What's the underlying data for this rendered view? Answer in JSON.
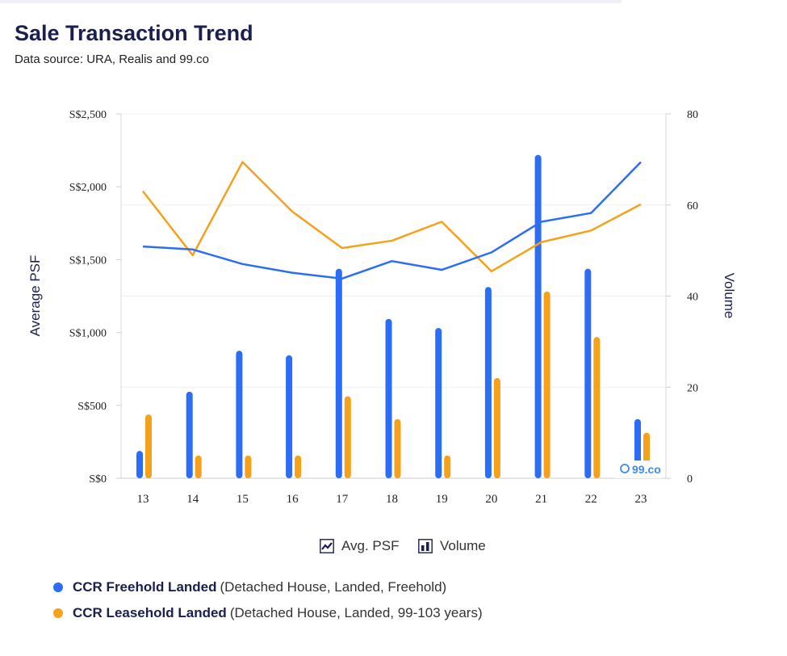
{
  "header": {
    "title": "Sale Transaction Trend",
    "subtitle": "Data source: URA, Realis and 99.co"
  },
  "toggles": {
    "psf_label": "Avg. PSF",
    "volume_label": "Volume"
  },
  "legend": [
    {
      "name": "CCR Freehold Landed",
      "detail": "(Detached House, Landed, Freehold)",
      "color": "#2b6ef5"
    },
    {
      "name": "CCR Leasehold Landed",
      "detail": "(Detached House, Landed, 99-103 years)",
      "color": "#f5a11c"
    }
  ],
  "watermark": "99.co",
  "chart_data": {
    "type": "bar+line",
    "categories": [
      "13",
      "14",
      "15",
      "16",
      "17",
      "18",
      "19",
      "20",
      "21",
      "22",
      "23"
    ],
    "ylabel_left": "Average PSF",
    "ylabel_right": "Volume",
    "yticks_left": [
      "S$0",
      "S$500",
      "S$1,000",
      "S$1,500",
      "S$2,000",
      "S$2,500"
    ],
    "ylim_left": [
      0,
      2500
    ],
    "yticks_right": [
      "0",
      "20",
      "40",
      "60",
      "80"
    ],
    "ylim_right": [
      0,
      80
    ],
    "grid": true,
    "series": [
      {
        "name": "CCR Freehold Landed",
        "color": "#2b6ef5",
        "psf": [
          1590,
          1570,
          1470,
          1410,
          1370,
          1490,
          1430,
          1550,
          1760,
          1820,
          2170
        ],
        "volume": [
          6,
          19,
          28,
          27,
          46,
          35,
          33,
          42,
          71,
          46,
          13
        ]
      },
      {
        "name": "CCR Leasehold Landed",
        "color": "#f5a11c",
        "psf": [
          1970,
          1530,
          2170,
          1830,
          1580,
          1630,
          1760,
          1420,
          1620,
          1700,
          1880
        ],
        "volume": [
          14,
          5,
          5,
          5,
          18,
          13,
          5,
          22,
          41,
          31,
          10
        ]
      }
    ]
  }
}
